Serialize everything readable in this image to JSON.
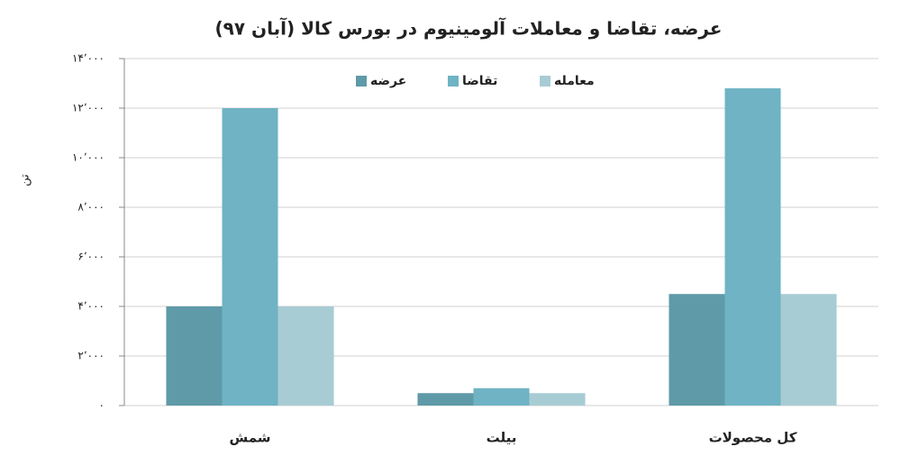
{
  "chart_data": {
    "type": "bar",
    "title": "عرضه، تقاضا و معاملات آلومینیوم در بورس کالا (آبان ۹۷)",
    "y_label": "تن",
    "categories": [
      "شمش",
      "بیلت",
      "کل محصولات"
    ],
    "series": [
      {
        "name": "عرضه",
        "color": "#5f9aa8",
        "values": [
          4000,
          500,
          4500
        ]
      },
      {
        "name": "تقاضا",
        "color": "#6fb3c4",
        "values": [
          12000,
          700,
          12800
        ]
      },
      {
        "name": "معامله",
        "color": "#a8ccd4",
        "values": [
          4000,
          500,
          4500
        ]
      }
    ],
    "ylim": [
      0,
      14000
    ],
    "yticks": [
      {
        "value": 0,
        "label": "۰"
      },
      {
        "value": 2000,
        "label": "۲٬۰۰۰"
      },
      {
        "value": 4000,
        "label": "۴٬۰۰۰"
      },
      {
        "value": 6000,
        "label": "۶٬۰۰۰"
      },
      {
        "value": 8000,
        "label": "۸٬۰۰۰"
      },
      {
        "value": 10000,
        "label": "۱۰٬۰۰۰"
      },
      {
        "value": 12000,
        "label": "۱۲٬۰۰۰"
      },
      {
        "value": 14000,
        "label": "۱۴٬۰۰۰"
      }
    ],
    "grid": true,
    "legend": "top"
  }
}
